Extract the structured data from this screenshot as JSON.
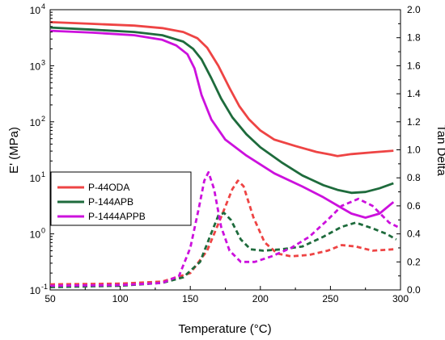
{
  "chart_data": {
    "type": "line",
    "xlabel": "Temperature (°C)",
    "ylabel_left": "E' (MPa)",
    "ylabel_right": "Tan Delta",
    "xlim": [
      50,
      300
    ],
    "ylim_left": [
      0.1,
      10000
    ],
    "yscale_left": "log",
    "ylim_right": [
      0.0,
      2.0
    ],
    "x_ticks": [
      "50",
      "100",
      "150",
      "200",
      "250",
      "300"
    ],
    "y_left_ticks": [
      {
        "base": "10",
        "exp": "-1",
        "value": 0.1
      },
      {
        "base": "10",
        "exp": "0",
        "value": 1
      },
      {
        "base": "10",
        "exp": "1",
        "value": 10
      },
      {
        "base": "10",
        "exp": "2",
        "value": 100
      },
      {
        "base": "10",
        "exp": "3",
        "value": 1000
      },
      {
        "base": "10",
        "exp": "4",
        "value": 10000
      }
    ],
    "y_right_ticks": [
      "0.0",
      "0.2",
      "0.4",
      "0.6",
      "0.8",
      "1.0",
      "1.2",
      "1.4",
      "1.6",
      "1.8",
      "2.0"
    ],
    "legend": {
      "position": "middle-left"
    },
    "grid": false,
    "series": [
      {
        "name": "P-44ODA",
        "color": "#ee4444",
        "axis": "left",
        "style": "solid",
        "points": [
          [
            50,
            6000
          ],
          [
            80,
            5600
          ],
          [
            110,
            5200
          ],
          [
            130,
            4700
          ],
          [
            145,
            4000
          ],
          [
            155,
            3100
          ],
          [
            162,
            2100
          ],
          [
            170,
            1000
          ],
          [
            178,
            400
          ],
          [
            185,
            190
          ],
          [
            192,
            110
          ],
          [
            200,
            70
          ],
          [
            210,
            48
          ],
          [
            225,
            37
          ],
          [
            240,
            29
          ],
          [
            250,
            26
          ],
          [
            255,
            24.5
          ],
          [
            265,
            26.5
          ],
          [
            280,
            28.5
          ],
          [
            295,
            30.5
          ]
        ]
      },
      {
        "name": "P-144APB",
        "color": "#1e6b3c",
        "axis": "left",
        "style": "solid",
        "points": [
          [
            50,
            4800
          ],
          [
            80,
            4400
          ],
          [
            110,
            4000
          ],
          [
            130,
            3500
          ],
          [
            145,
            2700
          ],
          [
            152,
            2000
          ],
          [
            158,
            1300
          ],
          [
            165,
            600
          ],
          [
            172,
            260
          ],
          [
            180,
            120
          ],
          [
            190,
            60
          ],
          [
            200,
            35
          ],
          [
            215,
            19
          ],
          [
            230,
            11
          ],
          [
            245,
            7.4
          ],
          [
            255,
            6.1
          ],
          [
            265,
            5.4
          ],
          [
            275,
            5.6
          ],
          [
            285,
            6.5
          ],
          [
            295,
            8.0
          ]
        ]
      },
      {
        "name": "P-1444APPB",
        "color": "#cc11dd",
        "axis": "left",
        "style": "solid",
        "points": [
          [
            50,
            4200
          ],
          [
            80,
            3900
          ],
          [
            110,
            3500
          ],
          [
            130,
            2900
          ],
          [
            140,
            2300
          ],
          [
            148,
            1600
          ],
          [
            153,
            900
          ],
          [
            158,
            300
          ],
          [
            165,
            110
          ],
          [
            175,
            48
          ],
          [
            190,
            25
          ],
          [
            210,
            12
          ],
          [
            230,
            7
          ],
          [
            245,
            4.5
          ],
          [
            255,
            3.2
          ],
          [
            265,
            2.3
          ],
          [
            275,
            1.95
          ],
          [
            285,
            2.3
          ],
          [
            295,
            3.7
          ]
        ]
      },
      {
        "name": "",
        "color": "#ee4444",
        "axis": "right",
        "style": "dashed",
        "points": [
          [
            50,
            0.04
          ],
          [
            100,
            0.045
          ],
          [
            130,
            0.06
          ],
          [
            150,
            0.12
          ],
          [
            162,
            0.28
          ],
          [
            172,
            0.52
          ],
          [
            180,
            0.72
          ],
          [
            184,
            0.78
          ],
          [
            188,
            0.74
          ],
          [
            195,
            0.52
          ],
          [
            203,
            0.34
          ],
          [
            212,
            0.26
          ],
          [
            222,
            0.24
          ],
          [
            235,
            0.25
          ],
          [
            248,
            0.28
          ],
          [
            258,
            0.32
          ],
          [
            268,
            0.31
          ],
          [
            280,
            0.28
          ],
          [
            295,
            0.29
          ]
        ]
      },
      {
        "name": "",
        "color": "#1e6b3c",
        "axis": "right",
        "style": "dashed",
        "points": [
          [
            50,
            0.02
          ],
          [
            100,
            0.03
          ],
          [
            130,
            0.05
          ],
          [
            145,
            0.09
          ],
          [
            157,
            0.2
          ],
          [
            164,
            0.38
          ],
          [
            170,
            0.53
          ],
          [
            174,
            0.55
          ],
          [
            179,
            0.5
          ],
          [
            186,
            0.36
          ],
          [
            193,
            0.29
          ],
          [
            202,
            0.28
          ],
          [
            215,
            0.29
          ],
          [
            230,
            0.31
          ],
          [
            245,
            0.38
          ],
          [
            258,
            0.45
          ],
          [
            268,
            0.48
          ],
          [
            280,
            0.44
          ],
          [
            290,
            0.4
          ],
          [
            297,
            0.36
          ]
        ]
      },
      {
        "name": "",
        "color": "#cc11dd",
        "axis": "right",
        "style": "dashed",
        "points": [
          [
            50,
            0.03
          ],
          [
            100,
            0.035
          ],
          [
            130,
            0.05
          ],
          [
            142,
            0.1
          ],
          [
            150,
            0.3
          ],
          [
            156,
            0.58
          ],
          [
            160,
            0.78
          ],
          [
            163,
            0.84
          ],
          [
            167,
            0.72
          ],
          [
            172,
            0.45
          ],
          [
            178,
            0.28
          ],
          [
            186,
            0.2
          ],
          [
            196,
            0.2
          ],
          [
            208,
            0.24
          ],
          [
            222,
            0.3
          ],
          [
            235,
            0.38
          ],
          [
            248,
            0.5
          ],
          [
            258,
            0.6
          ],
          [
            270,
            0.65
          ],
          [
            280,
            0.6
          ],
          [
            292,
            0.48
          ],
          [
            298,
            0.45
          ]
        ]
      }
    ]
  }
}
